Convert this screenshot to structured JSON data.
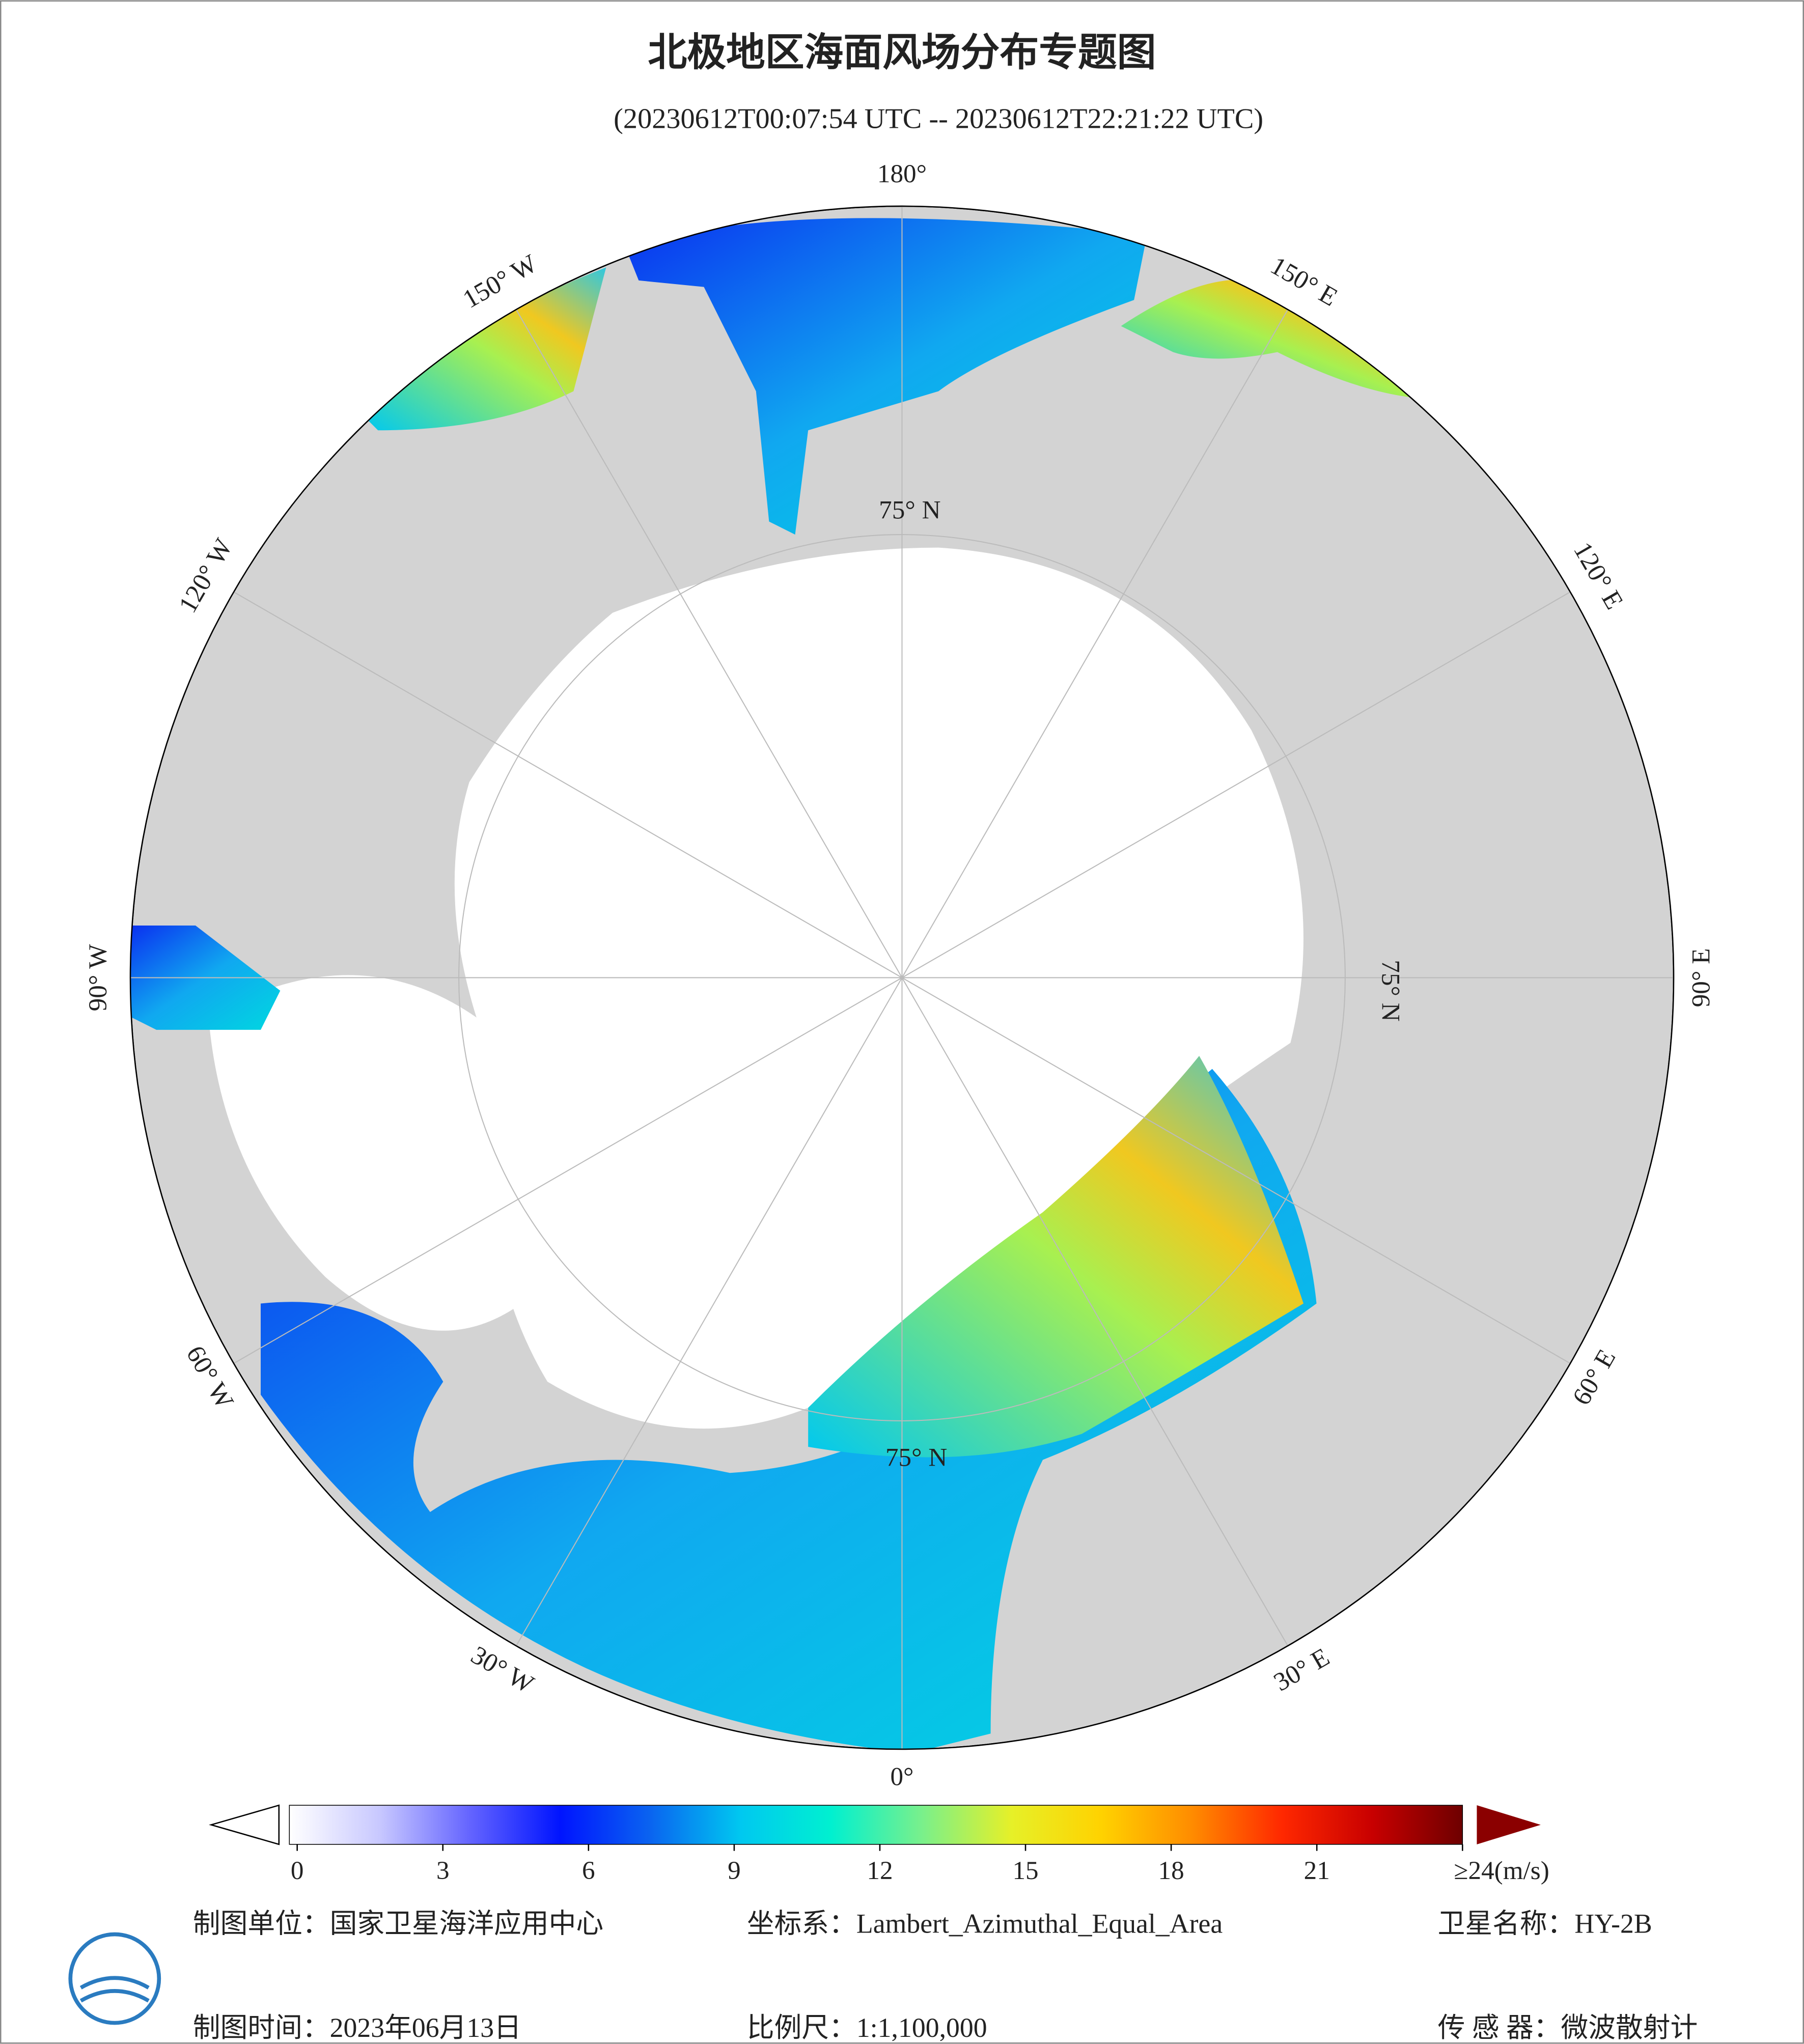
{
  "header": {
    "title": "北极地区海面风场分布专题图",
    "subtitle": "(20230612T00:07:54 UTC -- 20230612T22:21:22 UTC)"
  },
  "map": {
    "lon_labels": [
      "180°",
      "150° W",
      "120° W",
      "90° W",
      "60° W",
      "30° W",
      "0°",
      "30° E",
      "60° E",
      "90° E",
      "120° E",
      "150° E"
    ],
    "lat_labels": [
      "75° N",
      "75° N",
      "75° N"
    ]
  },
  "colorbar": {
    "lim": [
      0,
      24
    ],
    "ticks": [
      0,
      3,
      6,
      9,
      12,
      15,
      18,
      21,
      {
        "value": 24,
        "label": "≥24(m/s)"
      }
    ],
    "colors": [
      "#ffffff",
      "#c8c8ff",
      "#6464ff",
      "#0014ff",
      "#0a64f0",
      "#00c8f0",
      "#00f0d0",
      "#78f08c",
      "#e6f028",
      "#ffd200",
      "#ff8c00",
      "#ff2800",
      "#c80000",
      "#6e0000"
    ]
  },
  "footer": {
    "unit": "制图单位：国家卫星海洋应用中心",
    "crs": "坐标系：Lambert_Azimuthal_Equal_Area",
    "satellite": "卫星名称：HY-2B",
    "date": "制图时间：2023年06月13日",
    "scale": "比例尺：1:1,100,000",
    "sensor": "传 感 器：微波散射计"
  }
}
